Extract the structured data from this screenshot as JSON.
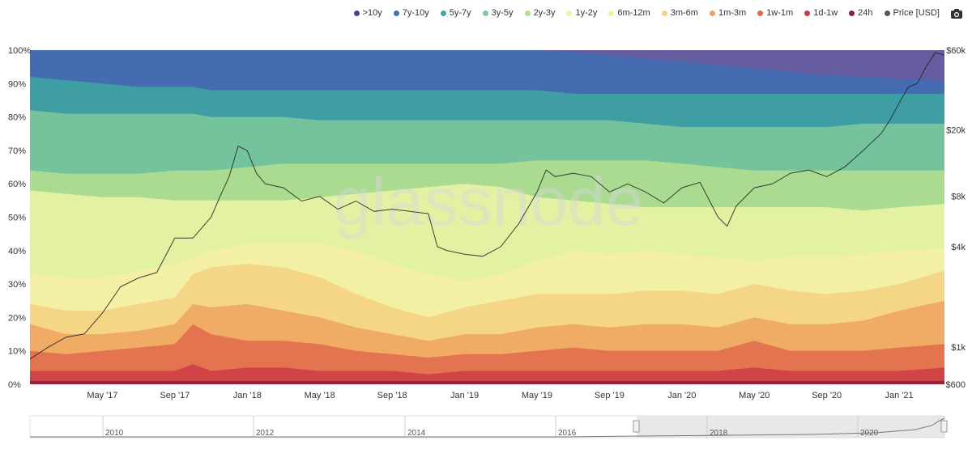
{
  "watermark": "glassnode",
  "legend": [
    {
      "label": ">10y",
      "color": "#4b3f8f"
    },
    {
      "label": "7y-10y",
      "color": "#3f6fb4"
    },
    {
      "label": "5y-7y",
      "color": "#3ea7a1"
    },
    {
      "label": "3y-5y",
      "color": "#7fc99b"
    },
    {
      "label": "2y-3y",
      "color": "#b4df8f"
    },
    {
      "label": "1y-2y",
      "color": "#ecf5a5"
    },
    {
      "label": "6m-12m",
      "color": "#f6efa6"
    },
    {
      "label": "3m-6m",
      "color": "#f5d080"
    },
    {
      "label": "1m-3m",
      "color": "#efa35f"
    },
    {
      "label": "1w-1m",
      "color": "#e2694c"
    },
    {
      "label": "1d-1w",
      "color": "#cd3c46"
    },
    {
      "label": "24h",
      "color": "#8c1d3b"
    },
    {
      "label": "Price [USD]",
      "color": "#555555"
    }
  ],
  "chart_data": {
    "type": "area",
    "stacked": true,
    "title": "",
    "x_ticks": [
      "May '17",
      "Sep '17",
      "Jan '18",
      "May '18",
      "Sep '18",
      "Jan '19",
      "May '19",
      "Sep '19",
      "Jan '20",
      "May '20",
      "Sep '20",
      "Jan '21"
    ],
    "x_tick_months": [
      4,
      8,
      12,
      16,
      20,
      24,
      28,
      32,
      36,
      40,
      44,
      48
    ],
    "x_range_months": [
      0,
      50.5
    ],
    "y_left_ticks": [
      "0%",
      "10%",
      "20%",
      "30%",
      "40%",
      "50%",
      "60%",
      "70%",
      "80%",
      "90%",
      "100%"
    ],
    "ylim_left": [
      0,
      100
    ],
    "y_right_ticks": [
      "$600",
      "$1k",
      "$4k",
      "$8k",
      "$20k",
      "$60k"
    ],
    "y_right_values": [
      600,
      1000,
      4000,
      8000,
      20000,
      60000
    ],
    "y_right_scale": "log",
    "ylim_right": [
      600,
      60000
    ],
    "sample_months": [
      0,
      2,
      4,
      6,
      8,
      9,
      10,
      12,
      14,
      16,
      18,
      20,
      22,
      24,
      26,
      28,
      30,
      32,
      34,
      36,
      38,
      40,
      42,
      44,
      46,
      48,
      50.5
    ],
    "series_cumulative_top": [
      {
        "name": "24h",
        "values": [
          1,
          1,
          1,
          1,
          1,
          1,
          1,
          1,
          1,
          1,
          1,
          1,
          1,
          1,
          1,
          1,
          1,
          1,
          1,
          1,
          1,
          1,
          1,
          1,
          1,
          1,
          1
        ]
      },
      {
        "name": "1d-1w",
        "values": [
          4,
          4,
          4,
          4,
          4,
          6,
          4,
          5,
          5,
          4,
          4,
          4,
          3,
          4,
          4,
          4,
          4,
          4,
          4,
          4,
          4,
          5,
          4,
          4,
          4,
          4,
          5
        ]
      },
      {
        "name": "1w-1m",
        "values": [
          10,
          9,
          10,
          11,
          12,
          18,
          15,
          13,
          13,
          12,
          10,
          9,
          8,
          9,
          9,
          10,
          11,
          10,
          10,
          10,
          10,
          13,
          10,
          10,
          10,
          11,
          12
        ]
      },
      {
        "name": "1m-3m",
        "values": [
          18,
          15,
          15,
          16,
          18,
          24,
          23,
          24,
          22,
          20,
          17,
          15,
          13,
          15,
          15,
          17,
          18,
          17,
          18,
          18,
          17,
          20,
          18,
          18,
          19,
          22,
          25
        ]
      },
      {
        "name": "3m-6m",
        "values": [
          24,
          22,
          22,
          24,
          26,
          33,
          35,
          36,
          35,
          32,
          27,
          23,
          20,
          23,
          25,
          27,
          27,
          27,
          28,
          28,
          27,
          30,
          28,
          27,
          28,
          30,
          34
        ]
      },
      {
        "name": "6m-12m",
        "values": [
          33,
          32,
          32,
          34,
          36,
          38,
          40,
          42,
          42,
          42,
          40,
          36,
          33,
          31,
          33,
          37,
          40,
          39,
          40,
          39,
          38,
          37,
          38,
          38,
          39,
          40,
          41
        ]
      },
      {
        "name": "1y-2y",
        "values": [
          58,
          57,
          56,
          56,
          55,
          55,
          55,
          55,
          55,
          56,
          57,
          58,
          59,
          60,
          59,
          56,
          55,
          54,
          53,
          53,
          53,
          53,
          53,
          53,
          52,
          53,
          54
        ]
      },
      {
        "name": "2y-3y",
        "values": [
          64,
          63,
          63,
          63,
          64,
          64,
          64,
          65,
          66,
          66,
          66,
          66,
          66,
          66,
          66,
          67,
          67,
          67,
          67,
          66,
          65,
          64,
          64,
          64,
          64,
          64,
          64
        ]
      },
      {
        "name": "3y-5y",
        "values": [
          82,
          81,
          81,
          81,
          81,
          81,
          80,
          80,
          80,
          79,
          79,
          79,
          79,
          79,
          79,
          79,
          79,
          79,
          78,
          77,
          77,
          77,
          77,
          77,
          78,
          78,
          78
        ]
      },
      {
        "name": "5y-7y",
        "values": [
          92,
          91,
          90,
          89,
          89,
          89,
          88,
          88,
          88,
          88,
          88,
          88,
          88,
          88,
          88,
          88,
          87,
          87,
          87,
          87,
          87,
          87,
          87,
          87,
          87,
          87,
          87
        ]
      },
      {
        "name": "7y-10y",
        "values": [
          100,
          100,
          100,
          100,
          100,
          100,
          100,
          100,
          100,
          100,
          100,
          100,
          100,
          100,
          100,
          100,
          99.5,
          98.5,
          97.5,
          96.5,
          95.5,
          94.5,
          93.5,
          92.5,
          92,
          91.5,
          91
        ]
      },
      {
        "name": ">10y",
        "values": [
          100,
          100,
          100,
          100,
          100,
          100,
          100,
          100,
          100,
          100,
          100,
          100,
          100,
          100,
          100,
          100,
          100,
          100,
          100,
          100,
          100,
          100,
          100,
          100,
          100,
          100,
          100
        ]
      }
    ],
    "price_months": [
      0,
      1,
      2,
      3,
      4,
      5,
      6,
      7,
      8,
      9,
      10,
      10.5,
      11,
      11.5,
      12,
      12.5,
      13,
      14,
      15,
      16,
      17,
      18,
      19,
      20,
      21,
      22,
      22.5,
      23,
      24,
      25,
      26,
      27,
      28,
      28.5,
      29,
      30,
      31,
      32,
      33,
      34,
      35,
      36,
      37,
      38,
      38.5,
      39,
      40,
      41,
      42,
      43,
      44,
      45,
      46,
      47,
      47.5,
      48,
      48.5,
      49,
      49.5,
      50,
      50.5
    ],
    "price_values": [
      850,
      1000,
      1150,
      1200,
      1600,
      2300,
      2600,
      2800,
      4500,
      4500,
      6000,
      8000,
      10500,
      16000,
      15000,
      11000,
      9500,
      9000,
      7500,
      8000,
      6700,
      7500,
      6500,
      6700,
      6500,
      6300,
      4000,
      3800,
      3600,
      3500,
      4000,
      5500,
      8500,
      11500,
      10500,
      11000,
      10500,
      8500,
      9500,
      8500,
      7300,
      9000,
      9700,
      6000,
      5300,
      7000,
      9000,
      9500,
      11000,
      11500,
      10500,
      12000,
      15000,
      19000,
      23000,
      29000,
      36000,
      38000,
      48000,
      58000,
      56000
    ],
    "navigator_years": [
      "2010",
      "2012",
      "2014",
      "2016",
      "2018",
      "2020"
    ]
  }
}
